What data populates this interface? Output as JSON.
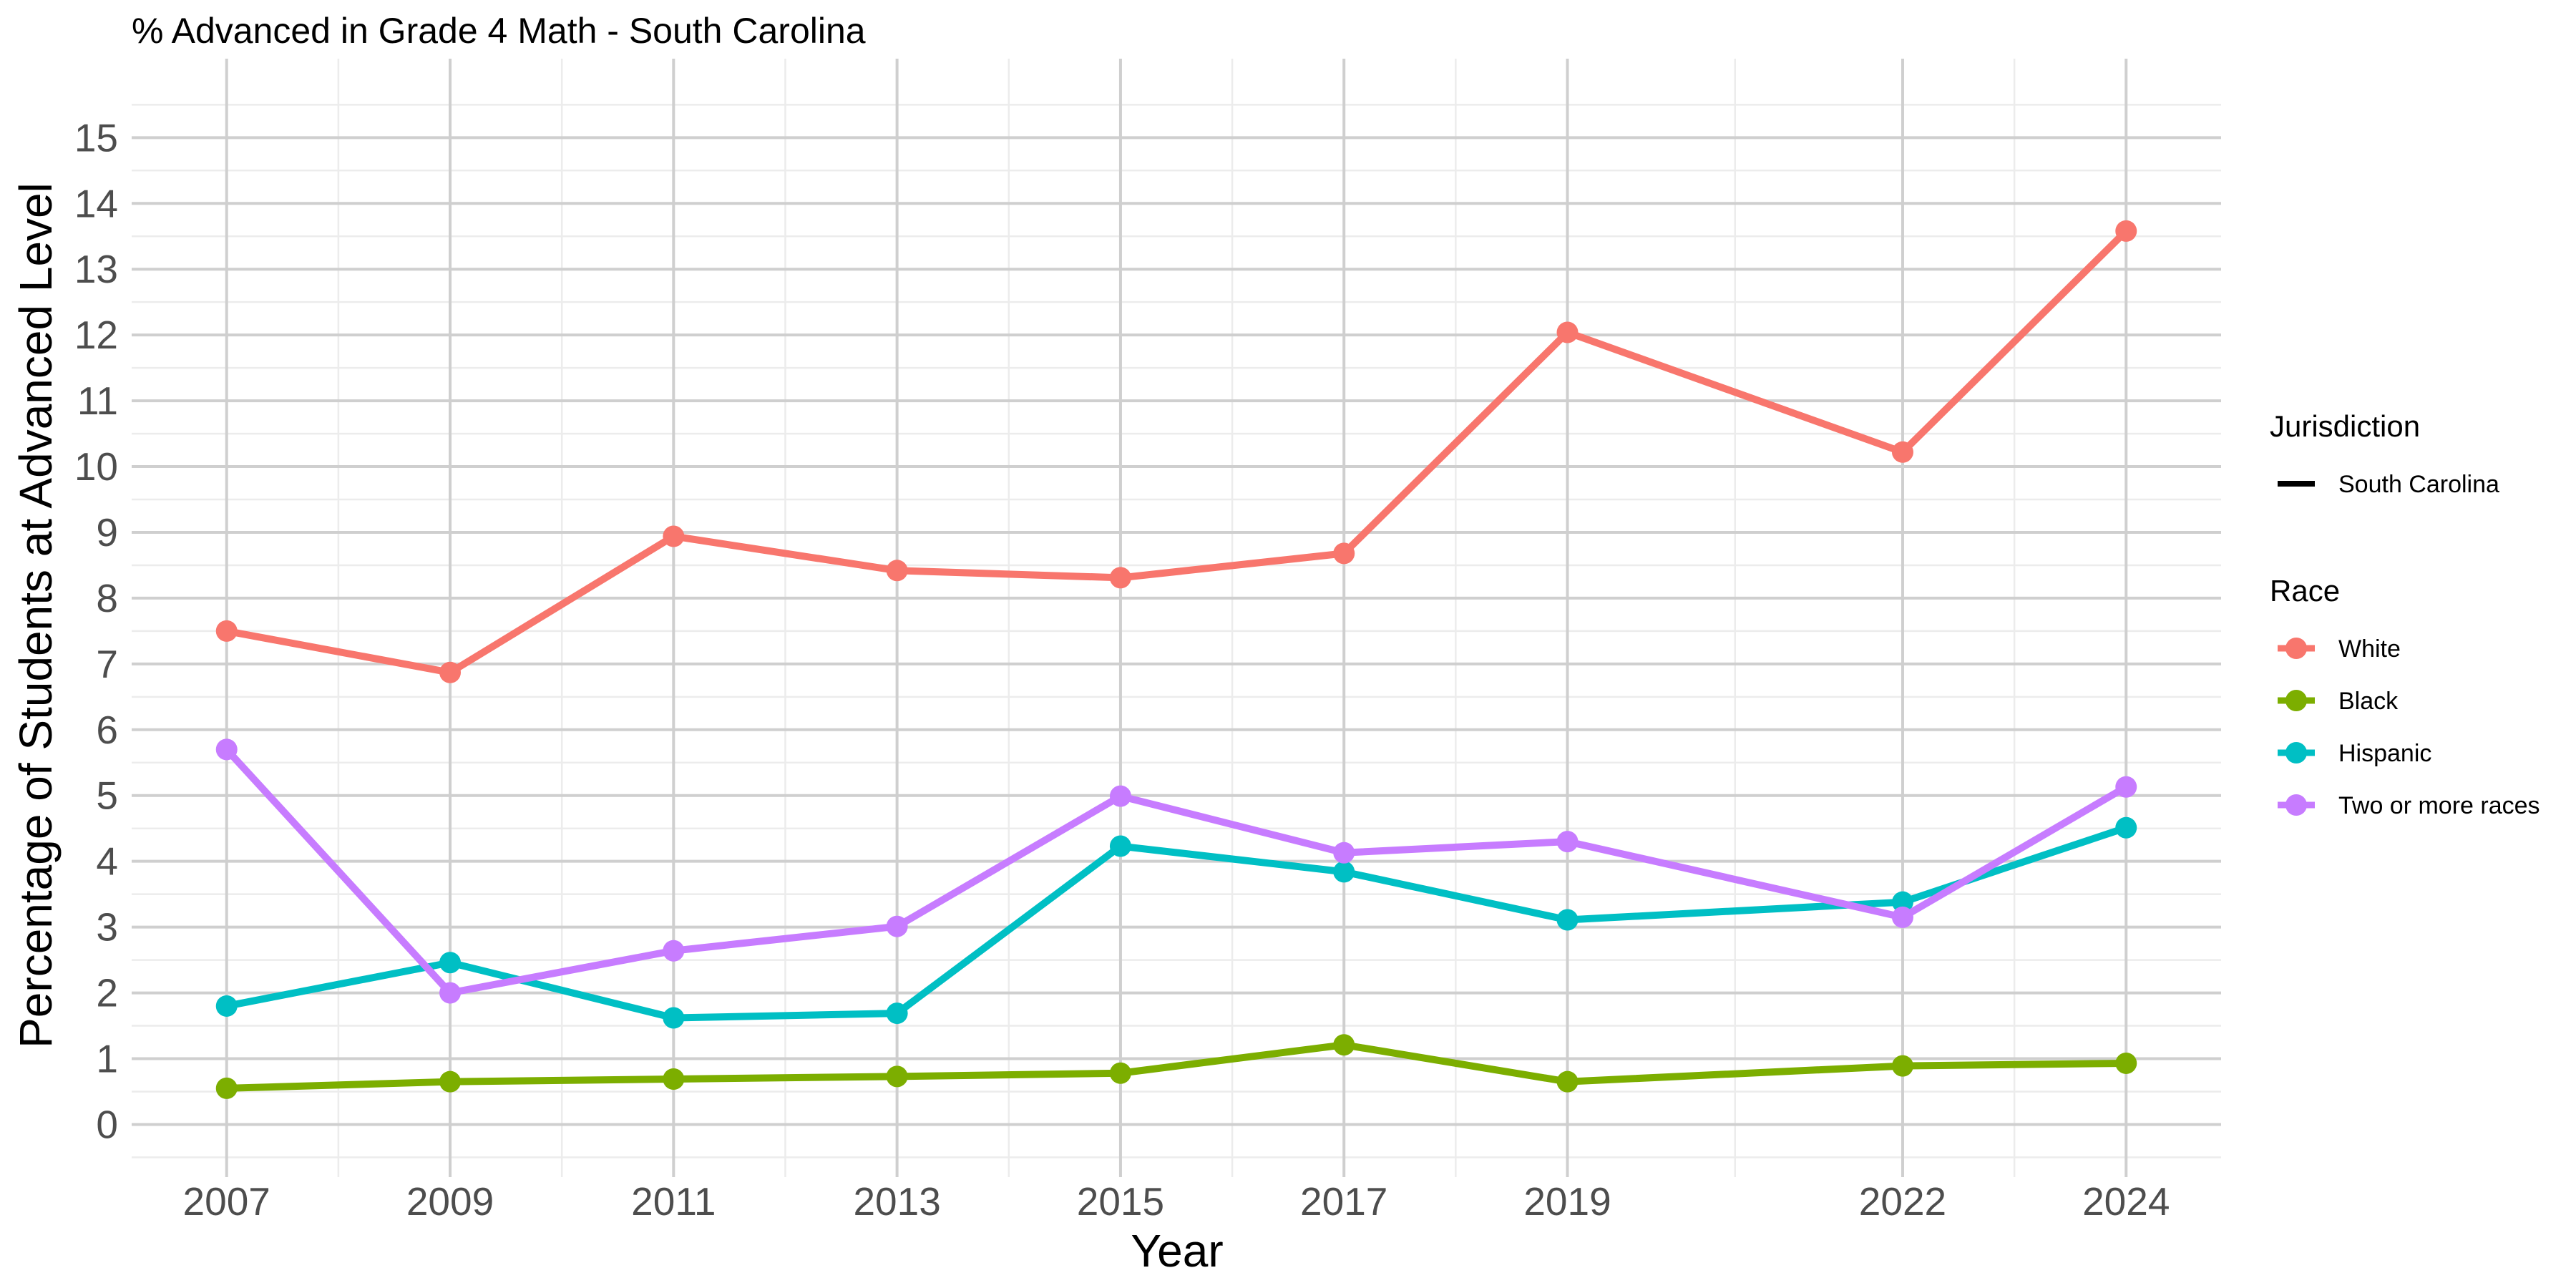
{
  "chart_data": {
    "type": "line",
    "title": "% Advanced in Grade 4 Math - South Carolina",
    "xlabel": "Year",
    "ylabel": "Percentage of Students at Advanced Level",
    "x": [
      2007,
      2009,
      2011,
      2013,
      2015,
      2017,
      2019,
      2022,
      2024
    ],
    "x_ticks": [
      "2007",
      "2009",
      "2011",
      "2013",
      "2015",
      "2017",
      "2019",
      "2022",
      "2024"
    ],
    "y_ticks": [
      "0",
      "1",
      "2",
      "3",
      "4",
      "5",
      "6",
      "7",
      "8",
      "9",
      "10",
      "11",
      "12",
      "13",
      "14",
      "15"
    ],
    "xlim": [
      2006.15,
      2024.85
    ],
    "ylim": [
      -0.8,
      16.2
    ],
    "grid": true,
    "legend_position": "right",
    "legend": {
      "line_title": "Jurisdiction",
      "line_entries": [
        "South Carolina"
      ],
      "color_title": "Race"
    },
    "series": [
      {
        "name": "White",
        "color": "#F8766D",
        "values": [
          7.5,
          6.87,
          8.94,
          8.42,
          8.31,
          8.68,
          12.04,
          10.22,
          13.58
        ]
      },
      {
        "name": "Black",
        "color": "#7CAE00",
        "values": [
          0.55,
          0.65,
          0.69,
          0.73,
          0.78,
          1.21,
          0.65,
          0.89,
          0.93
        ]
      },
      {
        "name": "Hispanic",
        "color": "#00BFC4",
        "values": [
          1.8,
          2.46,
          1.62,
          1.69,
          4.23,
          3.84,
          3.11,
          3.38,
          4.51
        ]
      },
      {
        "name": "Two or more races",
        "color": "#C77CFF",
        "values": [
          5.7,
          2.0,
          2.64,
          3.01,
          4.99,
          4.13,
          4.3,
          3.15,
          5.13
        ]
      }
    ]
  }
}
